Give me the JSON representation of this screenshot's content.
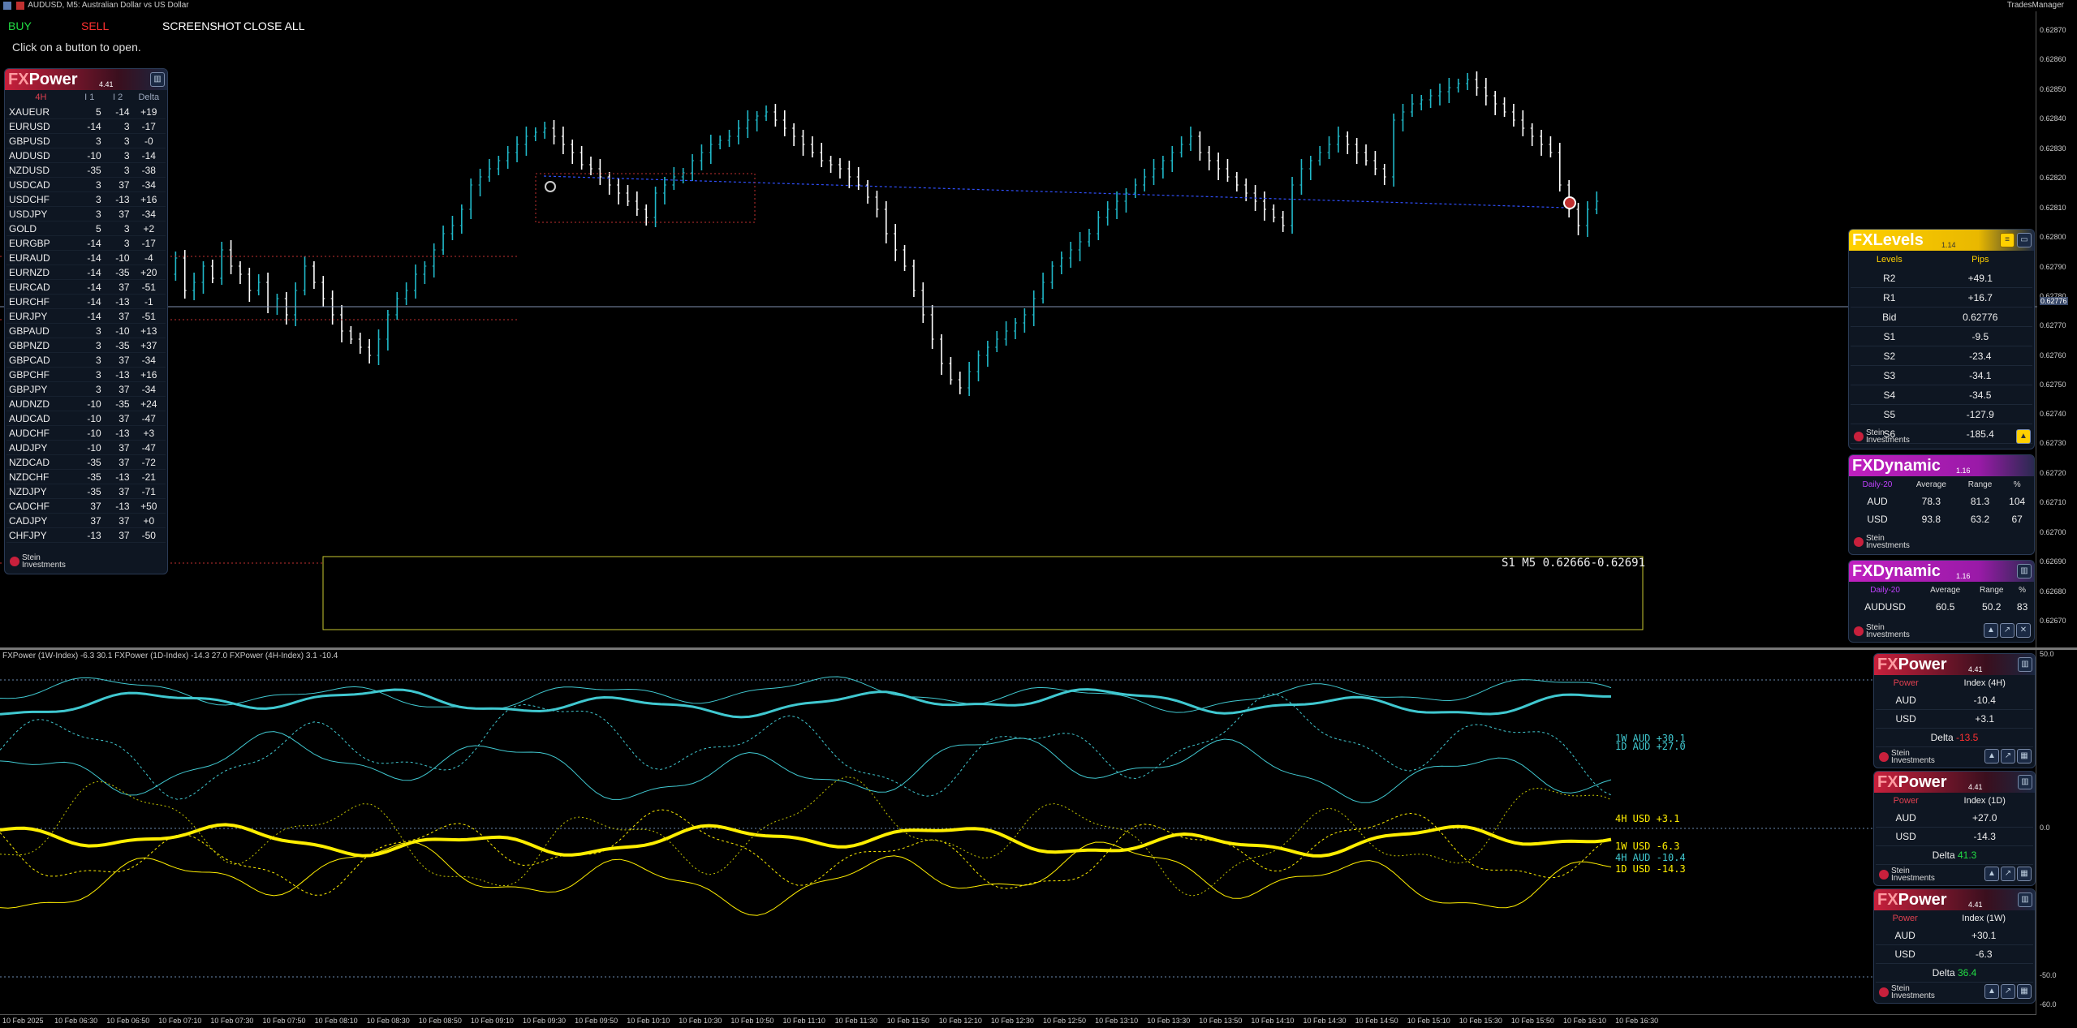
{
  "window": {
    "title": "AUDUSD, M5:  Australian Dollar vs US Dollar",
    "right_label": "TradesManager"
  },
  "toolbar": {
    "buy": "BUY",
    "sell": "SELL",
    "screenshot": "SCREENSHOT",
    "close_all": "CLOSE ALL",
    "hint": "Click on a button to open."
  },
  "fxpower_main": {
    "brand_fx": "FX",
    "brand_name": "Power",
    "version": "4.41",
    "headers": [
      "4H",
      "I 1",
      "I 2",
      "Delta"
    ],
    "rows": [
      [
        "XAUEUR",
        "5",
        "-14",
        "+19"
      ],
      [
        "EURUSD",
        "-14",
        "3",
        "-17"
      ],
      [
        "GBPUSD",
        "3",
        "3",
        "-0"
      ],
      [
        "AUDUSD",
        "-10",
        "3",
        "-14"
      ],
      [
        "NZDUSD",
        "-35",
        "3",
        "-38"
      ],
      [
        "USDCAD",
        "3",
        "37",
        "-34"
      ],
      [
        "USDCHF",
        "3",
        "-13",
        "+16"
      ],
      [
        "USDJPY",
        "3",
        "37",
        "-34"
      ],
      [
        "GOLD",
        "5",
        "3",
        "+2"
      ],
      [
        "EURGBP",
        "-14",
        "3",
        "-17"
      ],
      [
        "EURAUD",
        "-14",
        "-10",
        "-4"
      ],
      [
        "EURNZD",
        "-14",
        "-35",
        "+20"
      ],
      [
        "EURCAD",
        "-14",
        "37",
        "-51"
      ],
      [
        "EURCHF",
        "-14",
        "-13",
        "-1"
      ],
      [
        "EURJPY",
        "-14",
        "37",
        "-51"
      ],
      [
        "GBPAUD",
        "3",
        "-10",
        "+13"
      ],
      [
        "GBPNZD",
        "3",
        "-35",
        "+37"
      ],
      [
        "GBPCAD",
        "3",
        "37",
        "-34"
      ],
      [
        "GBPCHF",
        "3",
        "-13",
        "+16"
      ],
      [
        "GBPJPY",
        "3",
        "37",
        "-34"
      ],
      [
        "AUDNZD",
        "-10",
        "-35",
        "+24"
      ],
      [
        "AUDCAD",
        "-10",
        "37",
        "-47"
      ],
      [
        "AUDCHF",
        "-10",
        "-13",
        "+3"
      ],
      [
        "AUDJPY",
        "-10",
        "37",
        "-47"
      ],
      [
        "NZDCAD",
        "-35",
        "37",
        "-72"
      ],
      [
        "NZDCHF",
        "-35",
        "-13",
        "-21"
      ],
      [
        "NZDJPY",
        "-35",
        "37",
        "-71"
      ],
      [
        "CADCHF",
        "37",
        "-13",
        "+50"
      ],
      [
        "CADJPY",
        "37",
        "37",
        "+0"
      ],
      [
        "CHFJPY",
        "-13",
        "37",
        "-50"
      ]
    ],
    "footer": "Stein\nInvestments"
  },
  "price_axis": [
    "0.62870",
    "0.62860",
    "0.62850",
    "0.62840",
    "0.62830",
    "0.62820",
    "0.62810",
    "0.62800",
    "0.62790",
    "0.62780",
    "0.62776",
    "0.62770",
    "0.62760",
    "0.62750",
    "0.62740",
    "0.62730",
    "0.62720",
    "0.62710",
    "0.62700",
    "0.62690",
    "0.62680",
    "0.62670"
  ],
  "zone_label": "S1 M5 0.62666-0.62691",
  "fxlevels": {
    "brand_fx": "FX",
    "brand_name": "Levels",
    "version": "1.14",
    "headers": [
      "Levels",
      "Pips"
    ],
    "rows": [
      [
        "R2",
        "+49.1"
      ],
      [
        "R1",
        "+16.7"
      ],
      [
        "Bid",
        "0.62776"
      ],
      [
        "S1",
        "-9.5"
      ],
      [
        "S2",
        "-23.4"
      ],
      [
        "S3",
        "-34.1"
      ],
      [
        "S4",
        "-34.5"
      ],
      [
        "S5",
        "-127.9"
      ],
      [
        "S6",
        "-185.4"
      ]
    ],
    "footer": "Stein\nInvestments"
  },
  "fxdynamic_1": {
    "brand_fx": "FX",
    "brand_name": "Dynamic",
    "version": "1.16",
    "headers": [
      "Daily-20",
      "Average",
      "Range",
      "%"
    ],
    "rows": [
      [
        "AUD",
        "78.3",
        "81.3",
        "104"
      ],
      [
        "USD",
        "93.8",
        "63.2",
        "67"
      ]
    ],
    "footer": "Stein\nInvestments"
  },
  "fxdynamic_2": {
    "brand_fx": "FX",
    "brand_name": "Dynamic",
    "version": "1.16",
    "headers": [
      "Daily-20",
      "Average",
      "Range",
      "%"
    ],
    "rows": [
      [
        "AUDUSD",
        "60.5",
        "50.2",
        "83"
      ]
    ],
    "footer": "Stein\nInvestments"
  },
  "indicator": {
    "title": "FXPower (1W-Index) -6.3 30.1 FXPower (1D-Index) -14.3 27.0 FXPower (4H-Index) 3.1 -10.4",
    "labels": [
      {
        "text": "1W AUD +30.1",
        "color": "#40c8d0"
      },
      {
        "text": "1D AUD +27.0",
        "color": "#40c8d0"
      },
      {
        "text": "4H USD  +3.1",
        "color": "#ffee00"
      },
      {
        "text": "1W USD  -6.3",
        "color": "#ffee00"
      },
      {
        "text": "4H AUD -10.4",
        "color": "#40c8d0"
      },
      {
        "text": "1D USD -14.3",
        "color": "#ffee00"
      }
    ],
    "axis": [
      "50.0",
      "0.0",
      "-50.0",
      "-60.0"
    ]
  },
  "spanels": [
    {
      "brand_fx": "FX",
      "brand_name": "Power",
      "version": "4.41",
      "h1": "Power",
      "h2": "Index (4H)",
      "rows": [
        [
          "AUD",
          "-10.4"
        ],
        [
          "USD",
          "+3.1"
        ]
      ],
      "delta_label": "Delta",
      "delta": "-13.5",
      "footer": "Stein\nInvestments"
    },
    {
      "brand_fx": "FX",
      "brand_name": "Power",
      "version": "4.41",
      "h1": "Power",
      "h2": "Index (1D)",
      "rows": [
        [
          "AUD",
          "+27.0"
        ],
        [
          "USD",
          "-14.3"
        ]
      ],
      "delta_label": "Delta",
      "delta": "41.3",
      "footer": "Stein\nInvestments"
    },
    {
      "brand_fx": "FX",
      "brand_name": "Power",
      "version": "4.41",
      "h1": "Power",
      "h2": "Index (1W)",
      "rows": [
        [
          "AUD",
          "+30.1"
        ],
        [
          "USD",
          "-6.3"
        ]
      ],
      "delta_label": "Delta",
      "delta": "36.4",
      "footer": "Stein\nInvestments"
    }
  ],
  "time_axis": [
    "10 Feb 2025",
    "10 Feb 06:30",
    "10 Feb 06:50",
    "10 Feb 07:10",
    "10 Feb 07:30",
    "10 Feb 07:50",
    "10 Feb 08:10",
    "10 Feb 08:30",
    "10 Feb 08:50",
    "10 Feb 09:10",
    "10 Feb 09:30",
    "10 Feb 09:50",
    "10 Feb 10:10",
    "10 Feb 10:30",
    "10 Feb 10:50",
    "10 Feb 11:10",
    "10 Feb 11:30",
    "10 Feb 11:50",
    "10 Feb 12:10",
    "10 Feb 12:30",
    "10 Feb 12:50",
    "10 Feb 13:10",
    "10 Feb 13:30",
    "10 Feb 13:50",
    "10 Feb 14:10",
    "10 Feb 14:30",
    "10 Feb 14:50",
    "10 Feb 15:10",
    "10 Feb 15:30",
    "10 Feb 15:50",
    "10 Feb 16:10",
    "10 Feb 16:30"
  ],
  "colors": {
    "bull": "#20b8c8",
    "bear": "#ffffff",
    "aud_line": "#40c8d0",
    "usd_line": "#ffee00",
    "level_red": "#ff3030",
    "level_blue": "#3050ff"
  }
}
